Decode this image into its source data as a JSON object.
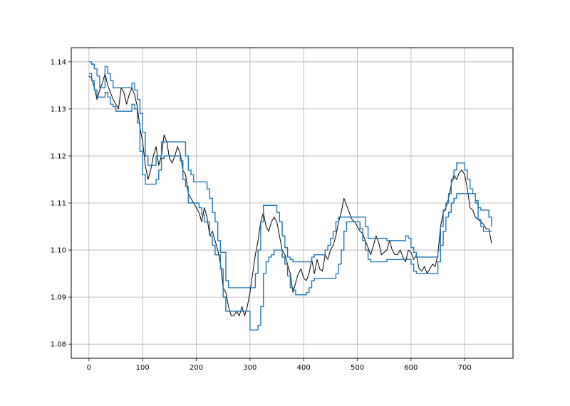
{
  "chart_data": {
    "type": "line",
    "title": "",
    "xlabel": "",
    "ylabel": "",
    "xlim": [
      -33,
      790
    ],
    "ylim": [
      1.077,
      1.143
    ],
    "grid": true,
    "xticks": [
      0,
      100,
      200,
      300,
      400,
      500,
      600,
      700
    ],
    "yticks": [
      1.08,
      1.09,
      1.1,
      1.11,
      1.12,
      1.13,
      1.14
    ],
    "series": [
      {
        "color": "#000000",
        "style": "price",
        "x": [
          0,
          5,
          10,
          15,
          20,
          25,
          30,
          35,
          40,
          45,
          50,
          55,
          60,
          65,
          70,
          75,
          80,
          85,
          90,
          95,
          100,
          105,
          110,
          115,
          120,
          125,
          130,
          135,
          140,
          145,
          150,
          155,
          160,
          165,
          170,
          175,
          180,
          185,
          190,
          195,
          200,
          205,
          210,
          215,
          220,
          225,
          230,
          235,
          240,
          245,
          250,
          255,
          260,
          265,
          270,
          275,
          280,
          285,
          290,
          295,
          300,
          305,
          310,
          315,
          320,
          325,
          330,
          335,
          340,
          345,
          350,
          355,
          360,
          365,
          370,
          375,
          380,
          385,
          390,
          395,
          400,
          405,
          410,
          415,
          420,
          425,
          430,
          435,
          440,
          445,
          450,
          455,
          460,
          465,
          470,
          475,
          480,
          485,
          490,
          495,
          500,
          505,
          510,
          515,
          520,
          525,
          530,
          535,
          540,
          545,
          550,
          555,
          560,
          565,
          570,
          575,
          580,
          585,
          590,
          595,
          600,
          605,
          610,
          615,
          620,
          625,
          630,
          635,
          640,
          645,
          650,
          655,
          660,
          665,
          670,
          675,
          680,
          685,
          690,
          695,
          700,
          705,
          710,
          715,
          720,
          725,
          730,
          735,
          740,
          745,
          750
        ],
        "values": [
          1.137,
          1.1365,
          1.1345,
          1.132,
          1.134,
          1.1355,
          1.1375,
          1.135,
          1.1335,
          1.132,
          1.131,
          1.13,
          1.1345,
          1.1335,
          1.131,
          1.133,
          1.1345,
          1.133,
          1.1305,
          1.126,
          1.123,
          1.118,
          1.115,
          1.117,
          1.12,
          1.122,
          1.118,
          1.12,
          1.1245,
          1.123,
          1.1195,
          1.1185,
          1.12,
          1.122,
          1.1205,
          1.117,
          1.116,
          1.112,
          1.111,
          1.11,
          1.109,
          1.108,
          1.106,
          1.109,
          1.107,
          1.103,
          1.104,
          1.102,
          1.1,
          1.097,
          1.092,
          1.091,
          1.088,
          1.086,
          1.086,
          1.087,
          1.086,
          1.088,
          1.086,
          1.088,
          1.091,
          1.095,
          1.099,
          1.102,
          1.106,
          1.108,
          1.105,
          1.104,
          1.106,
          1.107,
          1.106,
          1.103,
          1.1,
          1.099,
          1.097,
          1.095,
          1.091,
          1.093,
          1.095,
          1.096,
          1.094,
          1.0935,
          1.095,
          1.098,
          1.095,
          1.098,
          1.096,
          1.0955,
          1.099,
          1.098,
          1.1,
          1.101,
          1.103,
          1.106,
          1.108,
          1.111,
          1.1095,
          1.108,
          1.1065,
          1.106,
          1.105,
          1.104,
          1.1035,
          1.102,
          1.1005,
          1.099,
          1.101,
          1.103,
          1.1015,
          1.099,
          1.0995,
          1.1,
          1.102,
          1.1,
          1.099,
          1.099,
          1.1,
          1.0985,
          1.0975,
          1.1,
          1.0995,
          1.098,
          1.099,
          1.096,
          1.0955,
          1.0965,
          1.095,
          1.096,
          1.097,
          1.0965,
          1.099,
          1.105,
          1.108,
          1.109,
          1.111,
          1.114,
          1.116,
          1.115,
          1.1165,
          1.117,
          1.116,
          1.113,
          1.109,
          1.1085,
          1.107,
          1.1065,
          1.106,
          1.1055,
          1.1045,
          1.1045,
          1.1015
        ]
      },
      {
        "color": "#1f77b4",
        "style": "band",
        "x": [
          0,
          5,
          10,
          15,
          20,
          25,
          30,
          35,
          40,
          45,
          50,
          55,
          60,
          65,
          70,
          75,
          80,
          85,
          90,
          95,
          100,
          105,
          110,
          115,
          120,
          125,
          130,
          135,
          140,
          145,
          150,
          155,
          160,
          165,
          170,
          175,
          180,
          185,
          190,
          195,
          200,
          205,
          210,
          215,
          220,
          225,
          230,
          235,
          240,
          245,
          250,
          255,
          260,
          265,
          270,
          275,
          280,
          285,
          290,
          295,
          300,
          305,
          310,
          315,
          320,
          325,
          330,
          335,
          340,
          345,
          350,
          355,
          360,
          365,
          370,
          375,
          380,
          385,
          390,
          395,
          400,
          405,
          410,
          415,
          420,
          425,
          430,
          435,
          440,
          445,
          450,
          455,
          460,
          465,
          470,
          475,
          480,
          485,
          490,
          495,
          500,
          505,
          510,
          515,
          520,
          525,
          530,
          535,
          540,
          545,
          550,
          555,
          560,
          565,
          570,
          575,
          580,
          585,
          590,
          595,
          600,
          605,
          610,
          615,
          620,
          625,
          630,
          635,
          640,
          645,
          650,
          655,
          660,
          665,
          670,
          675,
          680,
          685,
          690,
          695,
          700,
          705,
          710,
          715,
          720,
          725,
          730,
          735,
          740,
          745,
          750
        ],
        "values": [
          1.14,
          1.1395,
          1.1385,
          1.137,
          1.1345,
          1.1345,
          1.139,
          1.1375,
          1.136,
          1.1345,
          1.1345,
          1.1345,
          1.1345,
          1.1345,
          1.1345,
          1.1345,
          1.1355,
          1.134,
          1.132,
          1.129,
          1.125,
          1.12,
          1.118,
          1.118,
          1.118,
          1.12,
          1.12,
          1.123,
          1.123,
          1.123,
          1.123,
          1.123,
          1.123,
          1.123,
          1.123,
          1.123,
          1.12,
          1.117,
          1.116,
          1.1145,
          1.1145,
          1.1145,
          1.1145,
          1.1145,
          1.113,
          1.111,
          1.108,
          1.106,
          1.102,
          1.0995,
          1.0995,
          1.0935,
          1.092,
          1.092,
          1.092,
          1.092,
          1.092,
          1.092,
          1.092,
          1.092,
          1.092,
          1.092,
          1.095,
          1.1,
          1.106,
          1.1095,
          1.1095,
          1.1095,
          1.1095,
          1.1095,
          1.108,
          1.106,
          1.103,
          1.1005,
          1.0985,
          1.098,
          1.0975,
          1.0975,
          1.0975,
          1.0975,
          1.0975,
          1.0975,
          1.0975,
          1.0985,
          1.099,
          1.099,
          1.099,
          1.099,
          1.1,
          1.101,
          1.1025,
          1.104,
          1.106,
          1.107,
          1.107,
          1.107,
          1.107,
          1.107,
          1.107,
          1.107,
          1.107,
          1.107,
          1.107,
          1.105,
          1.1025,
          1.1025,
          1.1025,
          1.1025,
          1.1025,
          1.1025,
          1.1025,
          1.102,
          1.102,
          1.102,
          1.102,
          1.102,
          1.102,
          1.102,
          1.103,
          1.1025,
          1.1005,
          1.0995,
          1.0985,
          1.0985,
          1.0985,
          1.0985,
          1.0985,
          1.0985,
          1.0985,
          1.0985,
          1.1,
          1.105,
          1.1085,
          1.11,
          1.112,
          1.115,
          1.117,
          1.1185,
          1.1185,
          1.1185,
          1.117,
          1.115,
          1.113,
          1.112,
          1.1105,
          1.109,
          1.1085,
          1.1085,
          1.1085,
          1.107,
          1.105
        ]
      },
      {
        "color": "#1f77b4",
        "style": "band",
        "x": [
          0,
          5,
          10,
          15,
          20,
          25,
          30,
          35,
          40,
          45,
          50,
          55,
          60,
          65,
          70,
          75,
          80,
          85,
          90,
          95,
          100,
          105,
          110,
          115,
          120,
          125,
          130,
          135,
          140,
          145,
          150,
          155,
          160,
          165,
          170,
          175,
          180,
          185,
          190,
          195,
          200,
          205,
          210,
          215,
          220,
          225,
          230,
          235,
          240,
          245,
          250,
          255,
          260,
          265,
          270,
          275,
          280,
          285,
          290,
          295,
          300,
          305,
          310,
          315,
          320,
          325,
          330,
          335,
          340,
          345,
          350,
          355,
          360,
          365,
          370,
          375,
          380,
          385,
          390,
          395,
          400,
          405,
          410,
          415,
          420,
          425,
          430,
          435,
          440,
          445,
          450,
          455,
          460,
          465,
          470,
          475,
          480,
          485,
          490,
          495,
          500,
          505,
          510,
          515,
          520,
          525,
          530,
          535,
          540,
          545,
          550,
          555,
          560,
          565,
          570,
          575,
          580,
          585,
          590,
          595,
          600,
          605,
          610,
          615,
          620,
          625,
          630,
          635,
          640,
          645,
          650,
          655,
          660,
          665,
          670,
          675,
          680,
          685,
          690,
          695,
          700,
          705,
          710,
          715,
          720,
          725,
          730,
          735,
          740,
          745,
          750
        ],
        "values": [
          1.1375,
          1.136,
          1.134,
          1.1325,
          1.1325,
          1.1325,
          1.1335,
          1.1325,
          1.131,
          1.1305,
          1.1295,
          1.1295,
          1.1295,
          1.1295,
          1.1295,
          1.1295,
          1.131,
          1.13,
          1.127,
          1.121,
          1.116,
          1.114,
          1.114,
          1.114,
          1.114,
          1.115,
          1.117,
          1.1195,
          1.12,
          1.12,
          1.12,
          1.12,
          1.12,
          1.12,
          1.119,
          1.115,
          1.1135,
          1.11,
          1.11,
          1.11,
          1.11,
          1.109,
          1.1075,
          1.106,
          1.106,
          1.103,
          1.101,
          1.099,
          1.099,
          1.096,
          1.09,
          1.087,
          1.087,
          1.087,
          1.087,
          1.087,
          1.087,
          1.087,
          1.087,
          1.087,
          1.083,
          1.083,
          1.083,
          1.084,
          1.088,
          1.095,
          1.0975,
          1.0985,
          1.099,
          1.1,
          1.1,
          1.1,
          1.0985,
          1.097,
          1.0945,
          1.092,
          1.0915,
          1.0905,
          1.0905,
          1.0905,
          1.0905,
          1.091,
          1.092,
          1.0935,
          1.094,
          1.094,
          1.094,
          1.094,
          1.094,
          1.094,
          1.094,
          1.094,
          1.095,
          1.097,
          1.1,
          1.104,
          1.106,
          1.106,
          1.106,
          1.106,
          1.106,
          1.1045,
          1.102,
          1.1,
          1.098,
          1.0975,
          1.0975,
          1.0975,
          1.0975,
          1.0975,
          1.0975,
          1.098,
          1.098,
          1.098,
          1.098,
          1.098,
          1.098,
          1.098,
          1.098,
          1.098,
          1.097,
          1.0955,
          1.095,
          1.095,
          1.095,
          1.095,
          1.095,
          1.095,
          1.095,
          1.095,
          1.0975,
          1.101,
          1.104,
          1.107,
          1.108,
          1.11,
          1.111,
          1.112,
          1.112,
          1.112,
          1.112,
          1.112,
          1.112,
          1.112,
          1.11,
          1.1065,
          1.105,
          1.104,
          1.104,
          1.104,
          1.104
        ]
      }
    ]
  }
}
